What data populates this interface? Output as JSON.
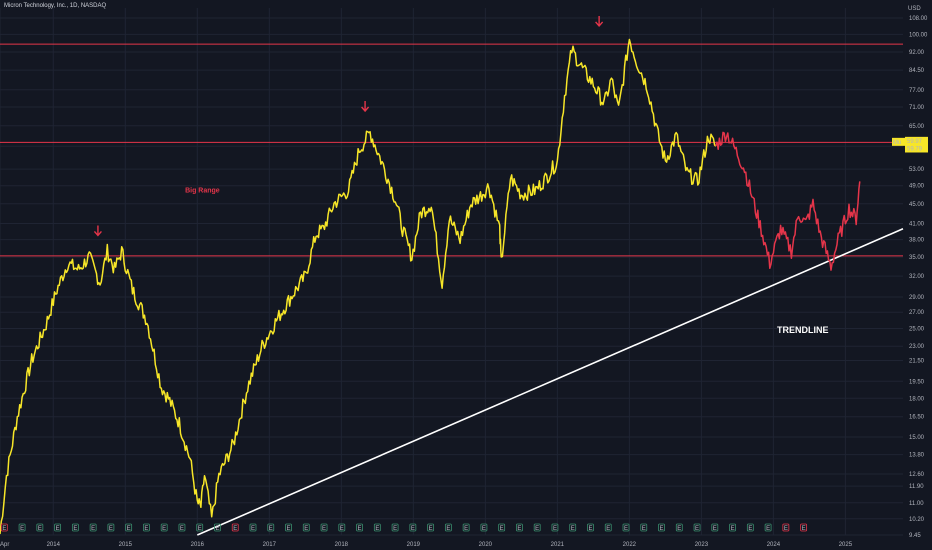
{
  "header": {
    "title": "Micron Technology, Inc., 1D, NASDAQ"
  },
  "chart_data": {
    "type": "line",
    "title": "Micron Technology, Inc., 1D, NASDAQ",
    "currency_label": "USD",
    "y_scale": "log",
    "ylim": [
      9.45,
      108.0
    ],
    "xlim": [
      2013.26,
      2025.8
    ],
    "grid": true,
    "y_ticks": [
      "108.00",
      "100.00",
      "92.00",
      "84.50",
      "77.00",
      "71.00",
      "65.00",
      "59.00",
      "53.00",
      "49.00",
      "45.00",
      "41.00",
      "38.00",
      "35.00",
      "32.00",
      "29.00",
      "27.00",
      "25.00",
      "23.00",
      "21.50",
      "19.50",
      "18.00",
      "16.50",
      "15.00",
      "13.80",
      "12.60",
      "11.90",
      "11.00",
      "10.20",
      "9.45"
    ],
    "x_ticks": [
      "Apr",
      "2014",
      "2015",
      "2016",
      "2017",
      "2018",
      "2019",
      "2020",
      "2021",
      "2022",
      "2023",
      "2024",
      "2025"
    ],
    "x_tick_years": [
      2013.26,
      2014.0,
      2015.0,
      2016.0,
      2017.0,
      2018.0,
      2019.0,
      2020.0,
      2021.0,
      2022.0,
      2023.0,
      2024.0,
      2025.0
    ],
    "series": [
      {
        "color": "#f7e628",
        "x": [
          2013.26,
          2013.35,
          2013.5,
          2013.7,
          2013.9,
          2014.05,
          2014.2,
          2014.35,
          2014.5,
          2014.65,
          2014.75,
          2014.85,
          2014.95,
          2015.1,
          2015.3,
          2015.5,
          2015.6,
          2015.75,
          2015.9,
          2016.0,
          2016.05,
          2016.1,
          2016.2,
          2016.3,
          2016.5,
          2016.7,
          2016.9,
          2017.1,
          2017.3,
          2017.5,
          2017.65,
          2017.75,
          2017.9,
          2018.1,
          2018.25,
          2018.4,
          2018.6,
          2018.75,
          2018.85,
          2018.98,
          2019.1,
          2019.25,
          2019.4,
          2019.5,
          2019.65,
          2019.8,
          2019.95,
          2020.05,
          2020.2,
          2020.22,
          2020.35,
          2020.5,
          2020.7,
          2020.85,
          2021.0,
          2021.1,
          2021.2,
          2021.35,
          2021.5,
          2021.65,
          2021.75,
          2021.85,
          2022.0,
          2022.1,
          2022.25,
          2022.4,
          2022.5,
          2022.65,
          2022.8,
          2022.95,
          2023.1,
          2023.2
        ],
        "y": [
          9.5,
          12.5,
          16.5,
          21.5,
          25.5,
          30,
          34,
          33,
          35,
          31,
          36,
          33,
          36,
          30,
          26,
          19,
          18,
          16,
          13.5,
          11,
          10.8,
          12.5,
          10.2,
          12.5,
          14.5,
          19,
          23,
          26,
          29,
          32,
          39,
          40,
          45,
          48,
          58,
          63,
          53,
          46,
          40,
          35,
          43,
          45,
          31,
          42,
          38,
          45,
          47,
          49,
          40,
          34,
          51,
          47,
          48,
          51,
          55,
          75,
          93,
          85,
          79,
          72,
          81,
          70,
          98,
          88,
          78,
          62,
          55,
          62,
          52,
          50,
          62,
          59
        ]
      },
      {
        "color": "#e5354a",
        "x": [
          2023.2,
          2023.35,
          2023.5,
          2023.6,
          2023.75,
          2023.85,
          2023.95,
          2024.1,
          2024.25,
          2024.35,
          2024.45,
          2024.55,
          2024.65,
          2024.8,
          2024.9,
          2025.05,
          2025.15,
          2025.2
        ],
        "y": [
          59,
          63,
          57,
          53,
          44,
          39,
          34,
          40,
          36,
          43,
          41,
          45,
          39,
          33.5,
          38,
          44,
          42,
          50
        ]
      }
    ],
    "last_price_labels": [
      "59.97",
      "59.79"
    ],
    "horizontal_lines": [
      95.5,
      60.1,
      35.2
    ],
    "trendline": {
      "x1": 2016.0,
      "y1": 9.45,
      "x2": 2025.8,
      "y2": 40.0
    },
    "annotations": [
      {
        "text": "Big Range",
        "x": 2015.83,
        "y": 47.5,
        "color": "#e5354a"
      },
      {
        "text": "TRENDLINE",
        "x": 2024.05,
        "y": 24.5,
        "color": "#ffffff"
      }
    ],
    "peak_arrows": [
      {
        "x": 2014.62,
        "y": 39.5
      },
      {
        "x": 2018.33,
        "y": 71.0
      },
      {
        "x": 2021.58,
        "y": 106.0
      }
    ],
    "earnings_markers": {
      "count": 46,
      "x_start": 2013.32,
      "x_end": 2024.42,
      "label": "E",
      "special_color": "#e5354a"
    }
  }
}
